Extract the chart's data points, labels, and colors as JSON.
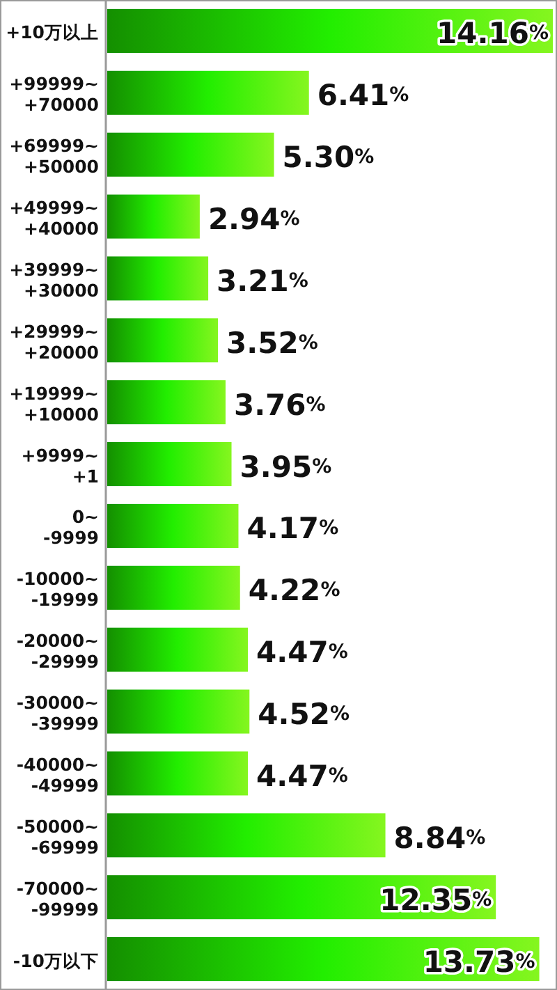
{
  "chart_data": {
    "type": "bar",
    "orientation": "horizontal",
    "categories": [
      "+10万以上",
      "+99999~+70000",
      "+69999~+50000",
      "+49999~+40000",
      "+39999~+30000",
      "+29999~+20000",
      "+19999~+10000",
      "+9999~+1",
      "0~-9999",
      "-10000~-19999",
      "-20000~-29999",
      "-30000~-39999",
      "-40000~-49999",
      "-50000~-69999",
      "-70000~-99999",
      "-10万以下"
    ],
    "values": [
      14.16,
      6.41,
      5.3,
      2.94,
      3.21,
      3.52,
      3.76,
      3.95,
      4.17,
      4.22,
      4.47,
      4.52,
      4.47,
      8.84,
      12.35,
      13.73
    ],
    "value_labels": [
      "14.16%",
      "6.41%",
      "5.30%",
      "2.94%",
      "3.21%",
      "3.52%",
      "3.76%",
      "3.95%",
      "4.17%",
      "4.22%",
      "4.47%",
      "4.52%",
      "4.47%",
      "8.84%",
      "12.35%",
      "13.73%"
    ],
    "color": "#22ee00",
    "tick_labels": "y"
  }
}
